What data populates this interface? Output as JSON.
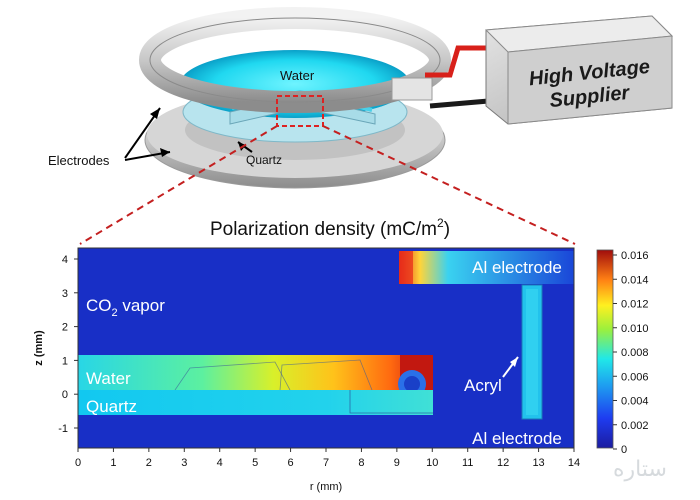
{
  "top": {
    "device_labels": {
      "water": "Water",
      "electrodes": "Electrodes",
      "quartz": "Quartz"
    },
    "supplier_label_line1": "High Voltage",
    "supplier_label_line2": "Supplier"
  },
  "plot": {
    "title_main": "Polarization density (mC/m",
    "title_sup": "2",
    "title_close": ")",
    "xlabel": "r (mm)",
    "ylabel": "z (mm)",
    "x_ticks": [
      "0",
      "1",
      "2",
      "3",
      "4",
      "5",
      "6",
      "7",
      "8",
      "9",
      "10",
      "11",
      "12",
      "13",
      "14"
    ],
    "y_ticks": [
      "4",
      "3",
      "2",
      "1",
      "0",
      "-1"
    ],
    "region_labels": {
      "co2_main": "CO",
      "co2_sub": "2",
      "co2_rest": " vapor",
      "water": "Water",
      "quartz": "Quartz",
      "acryl": "Acryl",
      "al_top": "Al electrode",
      "al_bottom": "Al electrode"
    },
    "colorbar": {
      "ticks": [
        "0.016",
        "0.014",
        "0.012",
        "0.010",
        "0.008",
        "0.006",
        "0.004",
        "0.002",
        "0"
      ]
    }
  },
  "watermark": "ستاره",
  "colors": {
    "background_field": "#1a30c8",
    "electrode_red": "#d8201a"
  }
}
